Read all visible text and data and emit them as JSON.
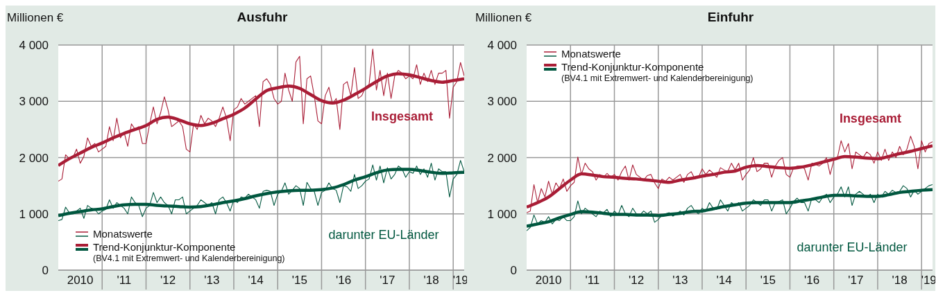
{
  "chart_data": [
    {
      "type": "line",
      "title": "Ausfuhr",
      "ylabel": "Millionen €",
      "grid": true,
      "legend": "bottom left",
      "marker": "none",
      "line_style": "solid",
      "x": [
        "2010-01",
        "2010-02",
        "2010-03",
        "2010-04",
        "2010-05",
        "2010-06",
        "2010-07",
        "2010-08",
        "2010-09",
        "2010-10",
        "2010-11",
        "2010-12",
        "2011-01",
        "2011-02",
        "2011-03",
        "2011-04",
        "2011-05",
        "2011-06",
        "2011-07",
        "2011-08",
        "2011-09",
        "2011-10",
        "2011-11",
        "2011-12",
        "2012-01",
        "2012-02",
        "2012-03",
        "2012-04",
        "2012-05",
        "2012-06",
        "2012-07",
        "2012-08",
        "2012-09",
        "2012-10",
        "2012-11",
        "2012-12",
        "2013-01",
        "2013-02",
        "2013-03",
        "2013-04",
        "2013-05",
        "2013-06",
        "2013-07",
        "2013-08",
        "2013-09",
        "2013-10",
        "2013-11",
        "2013-12",
        "2014-01",
        "2014-02",
        "2014-03",
        "2014-04",
        "2014-05",
        "2014-06",
        "2014-07",
        "2014-08",
        "2014-09",
        "2014-10",
        "2014-11",
        "2014-12",
        "2015-01",
        "2015-02",
        "2015-03",
        "2015-04",
        "2015-05",
        "2015-06",
        "2015-07",
        "2015-08",
        "2015-09",
        "2015-10",
        "2015-11",
        "2015-12",
        "2016-01",
        "2016-02",
        "2016-03",
        "2016-04",
        "2016-05",
        "2016-06",
        "2016-07",
        "2016-08",
        "2016-09",
        "2016-10",
        "2016-11",
        "2016-12",
        "2017-01",
        "2017-02",
        "2017-03",
        "2017-04",
        "2017-05",
        "2017-06",
        "2017-07",
        "2017-08",
        "2017-09",
        "2017-10",
        "2017-11",
        "2017-12",
        "2018-01",
        "2018-02",
        "2018-03",
        "2018-04",
        "2018-05",
        "2018-06",
        "2018-07",
        "2018-08",
        "2018-09",
        "2018-10",
        "2018-11",
        "2018-12",
        "2019-01",
        "2019-02",
        "2019-03",
        "2019-04"
      ],
      "xlim": [
        "2010-01",
        "2019-04"
      ],
      "xticks": [
        {
          "value": "2010-07",
          "label": "2010"
        },
        {
          "value": "2011-01",
          "label": null
        },
        {
          "value": "2011-07",
          "label": "'11"
        },
        {
          "value": "2012-01",
          "label": null
        },
        {
          "value": "2012-07",
          "label": "'12"
        },
        {
          "value": "2013-01",
          "label": null
        },
        {
          "value": "2013-07",
          "label": "'13"
        },
        {
          "value": "2014-01",
          "label": null
        },
        {
          "value": "2014-07",
          "label": "'14"
        },
        {
          "value": "2015-01",
          "label": null
        },
        {
          "value": "2015-07",
          "label": "'15"
        },
        {
          "value": "2016-01",
          "label": null
        },
        {
          "value": "2016-07",
          "label": "'16"
        },
        {
          "value": "2017-01",
          "label": null
        },
        {
          "value": "2017-07",
          "label": "'17"
        },
        {
          "value": "2018-01",
          "label": null
        },
        {
          "value": "2018-07",
          "label": "'18"
        },
        {
          "value": "2019-01",
          "label": null
        },
        {
          "value": "2019-03",
          "label": "'19"
        }
      ],
      "ylim": [
        0,
        4000
      ],
      "yticks": [
        {
          "value": 0,
          "label": "0"
        },
        {
          "value": 1000,
          "label": "1 000"
        },
        {
          "value": 2000,
          "label": "2 000"
        },
        {
          "value": 3000,
          "label": "3 000"
        },
        {
          "value": 4000,
          "label": "4 000"
        }
      ],
      "series": [
        {
          "name": "Monatswerte",
          "color": "#a91d36",
          "values": [
            1580,
            1620,
            2050,
            1980,
            2000,
            2150,
            1900,
            2020,
            2350,
            2200,
            2250,
            2100,
            2150,
            2200,
            2550,
            2300,
            2700,
            2350,
            2450,
            2200,
            2600,
            2500,
            2550,
            2250,
            2250,
            2600,
            2900,
            2600,
            2800,
            3080,
            2850,
            2550,
            2600,
            2650,
            2550,
            2150,
            2100,
            2600,
            2500,
            2750,
            2600,
            2700,
            2650,
            2550,
            2700,
            2900,
            2700,
            2300,
            2850,
            2900,
            3050,
            2950,
            3000,
            3050,
            3100,
            2550,
            3350,
            3400,
            3300,
            3050,
            2950,
            3000,
            3500,
            3200,
            3000,
            3700,
            3800,
            2600,
            3400,
            3450,
            3100,
            2650,
            2600,
            3100,
            3250,
            2950,
            3050,
            2500,
            3300,
            3350,
            3100,
            3600,
            3050,
            3100,
            3250,
            3300,
            3930,
            3200,
            3550,
            3100,
            3500,
            3050,
            3450,
            3550,
            3500,
            3400,
            3450,
            3400,
            3650,
            3300,
            3500,
            3350,
            3550,
            3300,
            3500,
            3500,
            3550,
            2700,
            3250,
            3350,
            3690,
            3450
          ]
        },
        {
          "color": "#00573f",
          "values": [
            880,
            900,
            1120,
            1020,
            1000,
            1050,
            1100,
            920,
            1150,
            1100,
            1080,
            1000,
            1050,
            1080,
            1250,
            1100,
            1200,
            1150,
            1100,
            1000,
            1300,
            1200,
            1150,
            950,
            1100,
            1150,
            1380,
            1200,
            1300,
            1200,
            1150,
            1000,
            1250,
            1250,
            1300,
            1000,
            1050,
            1100,
            1150,
            1250,
            1200,
            1150,
            1200,
            1000,
            1250,
            1300,
            1200,
            1050,
            1250,
            1200,
            1300,
            1280,
            1350,
            1300,
            1250,
            1100,
            1400,
            1420,
            1400,
            1150,
            1350,
            1400,
            1550,
            1350,
            1420,
            1500,
            1450,
            1150,
            1560,
            1450,
            1400,
            1150,
            1380,
            1420,
            1550,
            1450,
            1420,
            1200,
            1500,
            1480,
            1400,
            1700,
            1450,
            1500,
            1580,
            1620,
            1870,
            1600,
            1850,
            1550,
            1820,
            1620,
            1700,
            1850,
            1800,
            1650,
            1750,
            1720,
            1850,
            1700,
            1800,
            1650,
            1900,
            1600,
            1800,
            1750,
            1750,
            1300,
            1620,
            1700,
            1950,
            1750
          ]
        },
        {
          "name": "Trend-Konjunktur-Komponente",
          "color": "#a91d36",
          "x": [
            "2010-01",
            "2010-04",
            "2010-07",
            "2010-10",
            "2011-01",
            "2011-04",
            "2011-07",
            "2011-10",
            "2012-01",
            "2012-04",
            "2012-07",
            "2012-10",
            "2013-01",
            "2013-04",
            "2013-07",
            "2013-10",
            "2014-01",
            "2014-04",
            "2014-07",
            "2014-10",
            "2015-01",
            "2015-04",
            "2015-07",
            "2015-10",
            "2016-01",
            "2016-04",
            "2016-07",
            "2016-10",
            "2017-01",
            "2017-04",
            "2017-07",
            "2017-10",
            "2018-01",
            "2018-04",
            "2018-07",
            "2018-10",
            "2019-01",
            "2019-04"
          ],
          "values": [
            1860,
            1980,
            2080,
            2180,
            2260,
            2350,
            2430,
            2500,
            2570,
            2680,
            2720,
            2670,
            2600,
            2570,
            2610,
            2690,
            2770,
            2880,
            3040,
            3190,
            3240,
            3270,
            3230,
            3120,
            3010,
            2970,
            3020,
            3120,
            3230,
            3350,
            3450,
            3490,
            3470,
            3420,
            3370,
            3340,
            3370,
            3400
          ]
        },
        {
          "color": "#00573f",
          "x": [
            "2010-01",
            "2010-04",
            "2010-07",
            "2010-10",
            "2011-01",
            "2011-04",
            "2011-07",
            "2011-10",
            "2012-01",
            "2012-04",
            "2012-07",
            "2012-10",
            "2013-01",
            "2013-04",
            "2013-07",
            "2013-10",
            "2014-01",
            "2014-04",
            "2014-07",
            "2014-10",
            "2015-01",
            "2015-04",
            "2015-07",
            "2015-10",
            "2016-01",
            "2016-04",
            "2016-07",
            "2016-10",
            "2017-01",
            "2017-04",
            "2017-07",
            "2017-10",
            "2018-01",
            "2018-04",
            "2018-07",
            "2018-10",
            "2019-01",
            "2019-04"
          ],
          "values": [
            970,
            1010,
            1040,
            1070,
            1090,
            1130,
            1160,
            1170,
            1170,
            1150,
            1140,
            1130,
            1120,
            1130,
            1160,
            1200,
            1230,
            1270,
            1320,
            1360,
            1390,
            1410,
            1420,
            1420,
            1430,
            1460,
            1520,
            1600,
            1660,
            1730,
            1780,
            1790,
            1790,
            1770,
            1740,
            1720,
            1730,
            1740
          ]
        }
      ],
      "annotations": [
        "Insgesamt",
        "darunter EU-Länder",
        "(BV4.1 mit Extremwert- und Kalenderbereinigung)"
      ]
    },
    {
      "type": "line",
      "title": "Einfuhr",
      "ylabel": "Millionen €",
      "grid": true,
      "legend": "top left",
      "marker": "none",
      "line_style": "solid",
      "x": [
        "2010-01",
        "2010-02",
        "2010-03",
        "2010-04",
        "2010-05",
        "2010-06",
        "2010-07",
        "2010-08",
        "2010-09",
        "2010-10",
        "2010-11",
        "2010-12",
        "2011-01",
        "2011-02",
        "2011-03",
        "2011-04",
        "2011-05",
        "2011-06",
        "2011-07",
        "2011-08",
        "2011-09",
        "2011-10",
        "2011-11",
        "2011-12",
        "2012-01",
        "2012-02",
        "2012-03",
        "2012-04",
        "2012-05",
        "2012-06",
        "2012-07",
        "2012-08",
        "2012-09",
        "2012-10",
        "2012-11",
        "2012-12",
        "2013-01",
        "2013-02",
        "2013-03",
        "2013-04",
        "2013-05",
        "2013-06",
        "2013-07",
        "2013-08",
        "2013-09",
        "2013-10",
        "2013-11",
        "2013-12",
        "2014-01",
        "2014-02",
        "2014-03",
        "2014-04",
        "2014-05",
        "2014-06",
        "2014-07",
        "2014-08",
        "2014-09",
        "2014-10",
        "2014-11",
        "2014-12",
        "2015-01",
        "2015-02",
        "2015-03",
        "2015-04",
        "2015-05",
        "2015-06",
        "2015-07",
        "2015-08",
        "2015-09",
        "2015-10",
        "2015-11",
        "2015-12",
        "2016-01",
        "2016-02",
        "2016-03",
        "2016-04",
        "2016-05",
        "2016-06",
        "2016-07",
        "2016-08",
        "2016-09",
        "2016-10",
        "2016-11",
        "2016-12",
        "2017-01",
        "2017-02",
        "2017-03",
        "2017-04",
        "2017-05",
        "2017-06",
        "2017-07",
        "2017-08",
        "2017-09",
        "2017-10",
        "2017-11",
        "2017-12",
        "2018-01",
        "2018-02",
        "2018-03",
        "2018-04",
        "2018-05",
        "2018-06",
        "2018-07",
        "2018-08",
        "2018-09",
        "2018-10",
        "2018-11",
        "2018-12",
        "2019-01",
        "2019-02",
        "2019-03",
        "2019-04"
      ],
      "xlim": [
        "2010-01",
        "2019-04"
      ],
      "xticks": [
        {
          "value": "2010-07",
          "label": "2010"
        },
        {
          "value": "2011-01",
          "label": null
        },
        {
          "value": "2011-07",
          "label": "'11"
        },
        {
          "value": "2012-01",
          "label": null
        },
        {
          "value": "2012-07",
          "label": "'12"
        },
        {
          "value": "2013-01",
          "label": null
        },
        {
          "value": "2013-07",
          "label": "'13"
        },
        {
          "value": "2014-01",
          "label": null
        },
        {
          "value": "2014-07",
          "label": "'14"
        },
        {
          "value": "2015-01",
          "label": null
        },
        {
          "value": "2015-07",
          "label": "'15"
        },
        {
          "value": "2016-01",
          "label": null
        },
        {
          "value": "2016-07",
          "label": "'16"
        },
        {
          "value": "2017-01",
          "label": null
        },
        {
          "value": "2017-07",
          "label": "'17"
        },
        {
          "value": "2018-01",
          "label": null
        },
        {
          "value": "2018-07",
          "label": "'18"
        },
        {
          "value": "2019-01",
          "label": null
        },
        {
          "value": "2019-03",
          "label": "'19"
        }
      ],
      "ylim": [
        0,
        4000
      ],
      "yticks": [
        {
          "value": 0,
          "label": "0"
        },
        {
          "value": 1000,
          "label": "1 000"
        },
        {
          "value": 2000,
          "label": "2 000"
        },
        {
          "value": 3000,
          "label": "3 000"
        },
        {
          "value": 4000,
          "label": "4 000"
        }
      ],
      "series": [
        {
          "name": "Monatswerte",
          "color": "#a91d36",
          "values": [
            1020,
            1050,
            1520,
            1200,
            1450,
            1300,
            1580,
            1350,
            1550,
            1450,
            1620,
            1400,
            1500,
            1560,
            2010,
            1700,
            1900,
            1800,
            1750,
            1600,
            1700,
            1650,
            1720,
            1650,
            1700,
            1600,
            1750,
            1850,
            1600,
            1870,
            1700,
            1650,
            1600,
            1680,
            1700,
            1550,
            1450,
            1620,
            1580,
            1650,
            1600,
            1650,
            1700,
            1560,
            1700,
            1750,
            1620,
            1650,
            1800,
            1700,
            1780,
            1720,
            1650,
            1820,
            1780,
            1750,
            1900,
            1780,
            1900,
            1600,
            1700,
            1780,
            2000,
            1750,
            1800,
            1900,
            1900,
            1650,
            1850,
            1950,
            2000,
            1700,
            1650,
            1820,
            1850,
            1850,
            1800,
            1600,
            1900,
            1880,
            1850,
            1900,
            2000,
            1700,
            1950,
            2000,
            2300,
            2100,
            2250,
            1800,
            2100,
            2050,
            2000,
            2100,
            2050,
            1900,
            2100,
            1950,
            2150,
            1950,
            2100,
            2000,
            2200,
            2050,
            2150,
            2380,
            2200,
            1800,
            2300,
            2100,
            2250,
            2280
          ]
        },
        {
          "color": "#00573f",
          "values": [
            700,
            760,
            980,
            820,
            880,
            850,
            950,
            820,
            900,
            880,
            950,
            880,
            880,
            950,
            1230,
            1000,
            1100,
            1050,
            1000,
            950,
            1050,
            1020,
            1080,
            950,
            1050,
            980,
            1150,
            1000,
            950,
            1100,
            1000,
            980,
            1050,
            1000,
            1050,
            850,
            900,
            980,
            1000,
            1020,
            960,
            1000,
            1050,
            980,
            1100,
            1150,
            1050,
            1000,
            1100,
            1050,
            1200,
            1100,
            1080,
            1250,
            1150,
            1050,
            1200,
            1150,
            1200,
            1050,
            1100,
            1150,
            1250,
            1200,
            1150,
            1250,
            1250,
            1050,
            1200,
            1220,
            1250,
            1000,
            1100,
            1220,
            1280,
            1200,
            1200,
            1050,
            1280,
            1250,
            1200,
            1300,
            1350,
            1200,
            1300,
            1350,
            1480,
            1300,
            1480,
            1150,
            1350,
            1400,
            1350,
            1300,
            1350,
            1200,
            1350,
            1300,
            1400,
            1350,
            1420,
            1380,
            1400,
            1500,
            1450,
            1300,
            1420,
            1350,
            1400,
            1450,
            1500,
            1520
          ]
        },
        {
          "name": "Trend-Konjunktur-Komponente",
          "color": "#a91d36",
          "x": [
            "2010-01",
            "2010-04",
            "2010-07",
            "2010-10",
            "2011-01",
            "2011-04",
            "2011-07",
            "2011-10",
            "2012-01",
            "2012-04",
            "2012-07",
            "2012-10",
            "2013-01",
            "2013-04",
            "2013-07",
            "2013-10",
            "2014-01",
            "2014-04",
            "2014-07",
            "2014-10",
            "2015-01",
            "2015-04",
            "2015-07",
            "2015-10",
            "2016-01",
            "2016-04",
            "2016-07",
            "2016-10",
            "2017-01",
            "2017-04",
            "2017-07",
            "2017-10",
            "2018-01",
            "2018-04",
            "2018-07",
            "2018-10",
            "2019-01",
            "2019-04"
          ],
          "values": [
            1120,
            1200,
            1300,
            1450,
            1600,
            1710,
            1690,
            1660,
            1650,
            1630,
            1620,
            1600,
            1580,
            1560,
            1600,
            1630,
            1670,
            1700,
            1740,
            1760,
            1830,
            1860,
            1840,
            1820,
            1810,
            1830,
            1870,
            1920,
            1970,
            2020,
            2010,
            1990,
            1980,
            2020,
            2070,
            2110,
            2160,
            2210
          ]
        },
        {
          "color": "#00573f",
          "x": [
            "2010-01",
            "2010-04",
            "2010-07",
            "2010-10",
            "2011-01",
            "2011-04",
            "2011-07",
            "2011-10",
            "2012-01",
            "2012-04",
            "2012-07",
            "2012-10",
            "2013-01",
            "2013-04",
            "2013-07",
            "2013-10",
            "2014-01",
            "2014-04",
            "2014-07",
            "2014-10",
            "2015-01",
            "2015-04",
            "2015-07",
            "2015-10",
            "2016-01",
            "2016-04",
            "2016-07",
            "2016-10",
            "2017-01",
            "2017-04",
            "2017-07",
            "2017-10",
            "2018-01",
            "2018-04",
            "2018-07",
            "2018-10",
            "2019-01",
            "2019-04"
          ],
          "values": [
            780,
            820,
            860,
            930,
            990,
            1040,
            1030,
            1010,
            990,
            990,
            980,
            980,
            970,
            990,
            1010,
            1040,
            1050,
            1090,
            1130,
            1160,
            1190,
            1200,
            1200,
            1200,
            1200,
            1230,
            1260,
            1300,
            1330,
            1330,
            1320,
            1310,
            1310,
            1340,
            1380,
            1400,
            1420,
            1430
          ]
        }
      ],
      "annotations": [
        "Insgesamt",
        "darunter EU-Länder",
        "(BV4.1 mit Extremwert- und Kalenderbereinigung)"
      ]
    }
  ]
}
